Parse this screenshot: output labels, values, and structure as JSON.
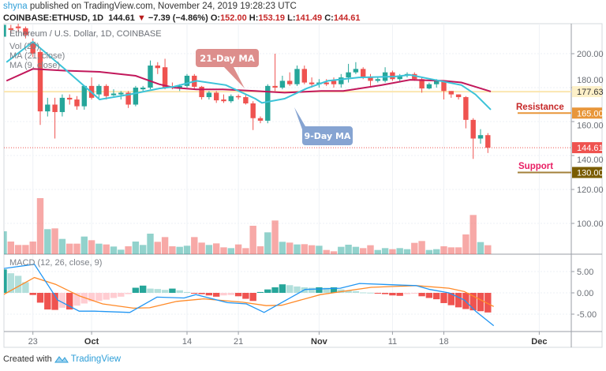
{
  "header": {
    "user": "shyna",
    "published": "published on TradingView.com, November 24, 2019 19:28:23 UTC",
    "symbol": "COINBASE:ETHUSD, 1D",
    "last": "144.61",
    "change": "−7.39 (−4.86%)",
    "o_label": "O:",
    "o": "152.00",
    "h_label": "H:",
    "h": "153.19",
    "l_label": "L:",
    "l": "141.49",
    "c_label": "C:",
    "c": "144.61",
    "down_icon": "triangle-down-icon"
  },
  "legend": {
    "title": "Ethereum / U.S. Dollar, 1D, COINBASE",
    "vol": "Vol (20)",
    "ma21": "MA (21, close)",
    "ma9": "MA (9, close)",
    "macd": "MACD (12, 26, close, 9)"
  },
  "annotations": {
    "ma21_callout": "21-Day MA",
    "ma9_callout": "9-Day MA",
    "resistance": "Resistance",
    "support": "Support"
  },
  "footer": {
    "created_with": "Created with",
    "brand": "TradingView"
  },
  "colors": {
    "up": "#26a69a",
    "down": "#ef5350",
    "ma9": "#3cc3d8",
    "ma21": "#c2185b",
    "macd": "#2196f3",
    "signal": "#ff8a28",
    "resistance": "#e8963a",
    "support": "#7a5c00",
    "last_price": "#ef5350",
    "ma_level": "#fdf0c8"
  },
  "chart_data": {
    "type": "candlestick",
    "title": "Ethereum / U.S. Dollar, 1D, COINBASE",
    "start_date": "2019-09-19",
    "ylim": [
      110,
      222
    ],
    "price_ticks": [
      "200.00",
      "180.00",
      "160.00",
      "140.00",
      "120.00",
      "100.00"
    ],
    "price_tick_values": [
      200,
      180,
      160,
      140,
      120,
      100
    ],
    "x_ticks": [
      {
        "label": "23",
        "index": 4
      },
      {
        "label": "Oct",
        "index": 12
      },
      {
        "label": "14",
        "index": 25
      },
      {
        "label": "21",
        "index": 32
      },
      {
        "label": "Nov",
        "index": 43
      },
      {
        "label": "11",
        "index": 53
      },
      {
        "label": "18",
        "index": 60
      },
      {
        "label": "Dec",
        "index": 73
      }
    ],
    "ohlc": [
      [
        210,
        218,
        208,
        217
      ],
      [
        215,
        217,
        212,
        214
      ],
      [
        216,
        218,
        213,
        215
      ],
      [
        215,
        216,
        209,
        211
      ],
      [
        207,
        209,
        198,
        200
      ],
      [
        201,
        203,
        158,
        166
      ],
      [
        166,
        174,
        163,
        170
      ],
      [
        170,
        174,
        150,
        165.6
      ],
      [
        165.6,
        176,
        163,
        174
      ],
      [
        174,
        176,
        170,
        173
      ],
      [
        173,
        175,
        167,
        169
      ],
      [
        169,
        181,
        167,
        181
      ],
      [
        181,
        186,
        173,
        174
      ],
      [
        176,
        182,
        174,
        181
      ],
      [
        181,
        182,
        173,
        175
      ],
      [
        175.5,
        179,
        175,
        176.5
      ],
      [
        176,
        178,
        173,
        177
      ],
      [
        177,
        178,
        168,
        170
      ],
      [
        170,
        181,
        169,
        180
      ],
      [
        179,
        181,
        178,
        180
      ],
      [
        180,
        196,
        179,
        193
      ],
      [
        193,
        195,
        188,
        191.5
      ],
      [
        192,
        197,
        179,
        180
      ],
      [
        180.5,
        183,
        179,
        180
      ],
      [
        179.5,
        182,
        178,
        181
      ],
      [
        181,
        188,
        180,
        187
      ],
      [
        187,
        188,
        179,
        180.5
      ],
      [
        180.5,
        181,
        173,
        174.4
      ],
      [
        174.4,
        178,
        173,
        177
      ],
      [
        177,
        178,
        171,
        172.5
      ],
      [
        173,
        176,
        171,
        172
      ],
      [
        172,
        176,
        171,
        175
      ],
      [
        175,
        176,
        173,
        174.4
      ],
      [
        174.4,
        176,
        170,
        170.7
      ],
      [
        170.7,
        172,
        155,
        162
      ],
      [
        162,
        163,
        159,
        160.5
      ],
      [
        160.5,
        182,
        159,
        181
      ],
      [
        181,
        200,
        178,
        180
      ],
      [
        180,
        187,
        179,
        184
      ],
      [
        184,
        189,
        181,
        182
      ],
      [
        182,
        193,
        181,
        191
      ],
      [
        191,
        193,
        182,
        183
      ],
      [
        183,
        186,
        180,
        182
      ],
      [
        182,
        185,
        180,
        183
      ],
      [
        183,
        185,
        181,
        182
      ],
      [
        184,
        186,
        180,
        182
      ],
      [
        182,
        188,
        180,
        186
      ],
      [
        186,
        194,
        183,
        189
      ],
      [
        189,
        195,
        188,
        191
      ],
      [
        191,
        192,
        185,
        186.5
      ],
      [
        186.5,
        188,
        181,
        184
      ],
      [
        184,
        186,
        183,
        185
      ],
      [
        184,
        192,
        183,
        189
      ],
      [
        189,
        190,
        184,
        185
      ],
      [
        185,
        188,
        183,
        186.5
      ],
      [
        187,
        189,
        186,
        188
      ],
      [
        188,
        189,
        184,
        185
      ],
      [
        185,
        186,
        177,
        179.5
      ],
      [
        179.5,
        183,
        179,
        182
      ],
      [
        182,
        185,
        180,
        184
      ],
      [
        184,
        184,
        173,
        178
      ],
      [
        178,
        178,
        174,
        176
      ],
      [
        176,
        176,
        173,
        174.4
      ],
      [
        174.4,
        175,
        156,
        161
      ],
      [
        161,
        162,
        138,
        150
      ],
      [
        150,
        155.5,
        147,
        152
      ],
      [
        152,
        153.19,
        141.49,
        144.61
      ]
    ],
    "volume_relative": [
      87,
      48,
      35,
      35,
      48,
      213,
      95,
      98,
      58,
      40,
      40,
      67,
      53,
      40,
      37,
      29,
      17,
      30,
      48,
      35,
      78,
      47,
      65,
      30,
      28,
      32,
      65,
      44,
      35,
      41,
      26,
      23,
      37,
      23,
      108,
      30,
      83,
      128,
      47,
      44,
      37,
      38,
      34,
      32,
      16,
      11,
      28,
      36,
      28,
      23,
      34,
      16,
      23,
      19,
      23,
      19,
      43,
      50,
      16,
      19,
      30,
      26,
      26,
      75,
      149,
      46,
      34
    ],
    "ma9": [
      [
        0.4,
        195
      ],
      [
        4,
        207
      ],
      [
        8.6,
        190
      ],
      [
        13.1,
        173
      ],
      [
        17.2,
        176
      ],
      [
        21.2,
        179.5
      ],
      [
        23.2,
        180.5
      ],
      [
        26.3,
        184
      ],
      [
        30.3,
        181.5
      ],
      [
        34.3,
        173.5
      ],
      [
        35.2,
        171
      ],
      [
        38.3,
        173.5
      ],
      [
        41.3,
        179.5
      ],
      [
        44.2,
        184
      ],
      [
        48.4,
        186
      ],
      [
        53.3,
        186.5
      ],
      [
        55.4,
        187.5
      ],
      [
        58.3,
        185
      ],
      [
        62.4,
        181.5
      ],
      [
        64.3,
        176
      ],
      [
        66.4,
        167
      ]
    ],
    "ma21": [
      [
        0.4,
        184
      ],
      [
        4,
        191
      ],
      [
        8.3,
        190
      ],
      [
        13.1,
        189.3
      ],
      [
        18,
        187
      ],
      [
        21.2,
        182
      ],
      [
        23.2,
        180
      ],
      [
        26.3,
        179
      ],
      [
        29.9,
        179
      ],
      [
        34.3,
        178
      ],
      [
        38.3,
        177
      ],
      [
        43.3,
        178
      ],
      [
        46.3,
        178
      ],
      [
        51.4,
        181.4
      ],
      [
        55.4,
        184.6
      ],
      [
        60,
        184
      ],
      [
        62.4,
        183
      ],
      [
        64.3,
        180.5
      ],
      [
        66.4,
        177.7
      ]
    ],
    "levels": [
      {
        "label": "177.63",
        "value": 177.63,
        "kind": "ma-level"
      },
      {
        "label": "165.00",
        "value": 165,
        "kind": "resistance"
      },
      {
        "label": "144.61",
        "value": 144.61,
        "kind": "last-price"
      },
      {
        "label": "130.00",
        "value": 130,
        "kind": "support"
      }
    ],
    "macd_ticks": [
      "5.00",
      "0.00",
      "-5.00"
    ],
    "macd_tick_values": [
      5,
      0,
      -5
    ],
    "macd_histogram": [
      5.5,
      4.6,
      4.0,
      2.5,
      -0.5,
      -2.3,
      -3.9,
      -4.0,
      -3.5,
      -3.9,
      -3.0,
      -2.5,
      -2.0,
      -1.9,
      -1.6,
      -1.2,
      -0.9,
      -0.3,
      1.2,
      1.7,
      1.0,
      0.9,
      0.7,
      1.0,
      0.6,
      0.2,
      -0.1,
      -0.3,
      -0.6,
      -0.9,
      -0.6,
      -0.5,
      -0.8,
      -1.4,
      -1.9,
      0.2,
      0.8,
      1.3,
      2.0,
      1.8,
      1.5,
      1.3,
      1.2,
      1.3,
      1.2,
      1.3,
      0.8,
      0.5,
      0.4,
      0.1,
      0.05,
      -0.1,
      -0.3,
      -0.6,
      -0.7,
      -0.3,
      -0.2,
      -0.8,
      -1.2,
      -1.5,
      -2.4,
      -2.9,
      -3.4,
      -3.8,
      -4.1,
      -4.3,
      -4.6
    ],
    "macd_line": [
      [
        0,
        5.7
      ],
      [
        4.2,
        6.7
      ],
      [
        7.4,
        -1.7
      ],
      [
        10.3,
        -4.3
      ],
      [
        12.4,
        -4.3
      ],
      [
        17.2,
        -4.6
      ],
      [
        20.9,
        -1.0
      ],
      [
        24.6,
        -1.2
      ],
      [
        26.2,
        -0.4
      ],
      [
        30.5,
        -2.3
      ],
      [
        33.1,
        -2.6
      ],
      [
        35.5,
        -4.6
      ],
      [
        41.1,
        0.8
      ],
      [
        45.9,
        1.1
      ],
      [
        48.5,
        2.2
      ],
      [
        52.8,
        1.9
      ],
      [
        56.2,
        1.7
      ],
      [
        58.1,
        0.8
      ],
      [
        60.7,
        0
      ],
      [
        62.8,
        -1.7
      ],
      [
        64.4,
        -4.4
      ],
      [
        66.8,
        -7.7
      ]
    ],
    "signal_line": [
      [
        0,
        -0.4
      ],
      [
        4.2,
        3.6
      ],
      [
        7.1,
        2.0
      ],
      [
        10.3,
        -0.7
      ],
      [
        13.5,
        -2.6
      ],
      [
        17.7,
        -3.6
      ],
      [
        19.9,
        -3.5
      ],
      [
        23.6,
        -2.0
      ],
      [
        27.3,
        -1.4
      ],
      [
        32.6,
        -2.2
      ],
      [
        35.8,
        -3.0
      ],
      [
        37.9,
        -2.9
      ],
      [
        43.2,
        -0.4
      ],
      [
        50.1,
        1.3
      ],
      [
        56.2,
        1.7
      ],
      [
        60.7,
        1.1
      ],
      [
        62.8,
        0.3
      ],
      [
        66.8,
        -3.2
      ]
    ]
  }
}
